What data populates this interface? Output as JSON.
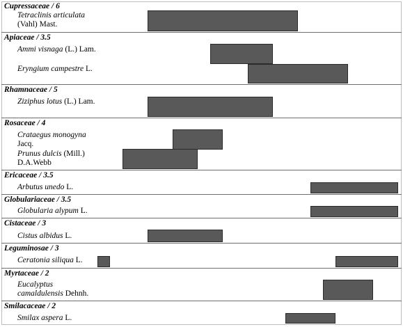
{
  "chart_data": {
    "type": "gantt",
    "x_unit": "month",
    "groups": [
      {
        "family": "Cupressaceae",
        "score": "6",
        "species": [
          {
            "name": "Tetraclinis articulata",
            "author": "(Vahl) Mast.",
            "ranges": [
              [
                2,
                8
              ]
            ]
          }
        ]
      },
      {
        "family": "Apiaceae",
        "score": "3.5",
        "species": [
          {
            "name": "Ammi visnaga",
            "author": "(L.) Lam.",
            "ranges": [
              [
                4.5,
                7
              ]
            ]
          },
          {
            "name": "Eryngium campestre",
            "author": "L.",
            "ranges": [
              [
                6,
                10
              ]
            ]
          }
        ]
      },
      {
        "family": "Rhamnaceae",
        "score": "5",
        "species": [
          {
            "name": "Ziziphus lotus",
            "author": "(L.) Lam.",
            "ranges": [
              [
                2,
                7
              ]
            ]
          }
        ]
      },
      {
        "family": "Rosaceae",
        "score": "4",
        "species": [
          {
            "name": "Crataegus monogyna",
            "author": "Jacq.",
            "ranges": [
              [
                3,
                5
              ]
            ]
          },
          {
            "name": "Prunus dulcis",
            "author": "(Mill.) D.A.Webb",
            "ranges": [
              [
                1,
                4
              ]
            ]
          }
        ]
      },
      {
        "family": "Ericaceae",
        "score": "3.5",
        "species": [
          {
            "name": "Arbutus unedo",
            "author": "L.",
            "ranges": [
              [
                8.5,
                12
              ]
            ]
          }
        ]
      },
      {
        "family": "Globulariaceae",
        "score": "3.5",
        "species": [
          {
            "name": "Globularia alypum",
            "author": "L.",
            "ranges": [
              [
                8.5,
                12
              ]
            ]
          }
        ]
      },
      {
        "family": "Cistaceae",
        "score": "3",
        "species": [
          {
            "name": "Cistus albidus",
            "author": "L.",
            "ranges": [
              [
                2,
                5
              ]
            ]
          }
        ]
      },
      {
        "family": "Leguminosae",
        "score": "3",
        "species": [
          {
            "name": "Ceratonia siliqua",
            "author": "L.",
            "ranges": [
              [
                0,
                0.5
              ],
              [
                9.5,
                12
              ]
            ]
          }
        ]
      },
      {
        "family": "Myrtaceae",
        "score": "2",
        "species": [
          {
            "name": "Eucalyptus camaldulensis",
            "author": "Dehnh.",
            "ranges": [
              [
                9,
                11
              ]
            ]
          }
        ]
      },
      {
        "family": "Smilacaceae",
        "score": "2",
        "species": [
          {
            "name": "Smilax aspera",
            "author": "L.",
            "ranges": [
              [
                7.5,
                9.5
              ]
            ]
          }
        ]
      }
    ],
    "xlim": [
      0,
      12
    ],
    "title": "",
    "xlabel": "",
    "ylabel": "",
    "grid": false,
    "legend": "none",
    "colors": {
      "bar": "#595959",
      "bar_border": "#2b2b2b",
      "separator": "#6e6e6e",
      "text": "#000000"
    }
  }
}
